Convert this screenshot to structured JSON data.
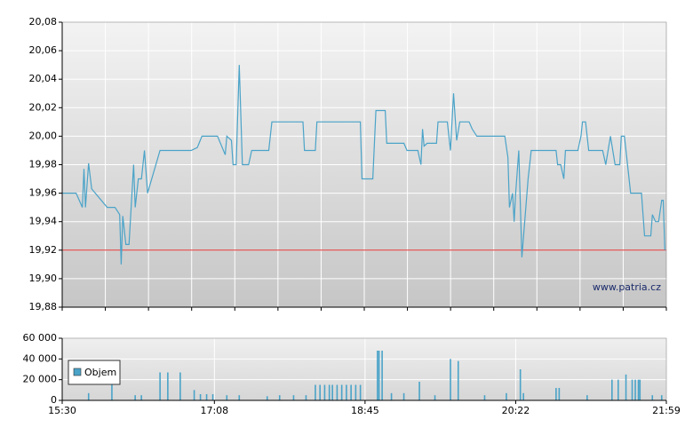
{
  "chart_data": [
    {
      "type": "line",
      "color": "#4aa3c8",
      "xlim": [
        "15:30",
        "21:59"
      ],
      "ylim": [
        19.88,
        20.08
      ],
      "yticks": [
        {
          "value": 19.88,
          "label": "19,88"
        },
        {
          "value": 19.9,
          "label": "19,90"
        },
        {
          "value": 19.92,
          "label": "19,92"
        },
        {
          "value": 19.94,
          "label": "19,94"
        },
        {
          "value": 19.96,
          "label": "19,96"
        },
        {
          "value": 19.98,
          "label": "19,98"
        },
        {
          "value": 20.0,
          "label": "20,00"
        },
        {
          "value": 20.02,
          "label": "20,02"
        },
        {
          "value": 20.04,
          "label": "20,04"
        },
        {
          "value": 20.06,
          "label": "20,06"
        },
        {
          "value": 20.08,
          "label": "20,08"
        }
      ],
      "grid": true,
      "reference_line": {
        "value": 19.92,
        "color": "#e03030"
      },
      "watermark": "www.patria.cz",
      "x": [
        "15:30",
        "15:39",
        "15:43",
        "15:44",
        "15:45",
        "15:47",
        "15:49",
        "15:59",
        "16:04",
        "16:07",
        "16:08",
        "16:09",
        "16:11",
        "16:13",
        "16:16",
        "16:17",
        "16:19",
        "16:21",
        "16:23",
        "16:25",
        "16:33",
        "16:53",
        "16:57",
        "17:00",
        "17:10",
        "17:15",
        "17:16",
        "17:19",
        "17:20",
        "17:22",
        "17:24",
        "17:26",
        "17:30",
        "17:32",
        "17:43",
        "17:45",
        "18:05",
        "18:06",
        "18:13",
        "18:14",
        "18:42",
        "18:43",
        "18:50",
        "18:52",
        "18:58",
        "18:59",
        "19:10",
        "19:12",
        "19:19",
        "19:21",
        "19:22",
        "19:23",
        "19:25",
        "19:31",
        "19:32",
        "19:38",
        "19:40",
        "19:42",
        "19:44",
        "19:46",
        "19:52",
        "19:54",
        "19:57",
        "20:15",
        "20:17",
        "20:18",
        "20:20",
        "20:21",
        "20:22",
        "20:24",
        "20:26",
        "20:30",
        "20:32",
        "20:48",
        "20:49",
        "20:51",
        "20:53",
        "20:54",
        "21:02",
        "21:04",
        "21:05",
        "21:07",
        "21:09",
        "21:18",
        "21:20",
        "21:23",
        "21:26",
        "21:29",
        "21:30",
        "21:32",
        "21:34",
        "21:36",
        "21:43",
        "21:45",
        "21:49",
        "21:50",
        "21:52",
        "21:54",
        "21:56",
        "21:57",
        "21:58"
      ],
      "values": [
        19.96,
        19.96,
        19.95,
        19.977,
        19.95,
        19.981,
        19.963,
        19.95,
        19.95,
        19.945,
        19.91,
        19.944,
        19.924,
        19.924,
        19.98,
        19.95,
        19.97,
        19.97,
        19.99,
        19.96,
        19.99,
        19.99,
        19.992,
        20.0,
        20.0,
        19.987,
        20.0,
        19.997,
        19.98,
        19.98,
        20.05,
        19.98,
        19.98,
        19.99,
        19.99,
        20.01,
        20.01,
        19.99,
        19.99,
        20.01,
        20.01,
        19.97,
        19.97,
        20.018,
        20.018,
        19.995,
        19.995,
        19.99,
        19.99,
        19.98,
        20.005,
        19.993,
        19.995,
        19.995,
        20.01,
        20.01,
        19.99,
        20.03,
        19.997,
        20.01,
        20.01,
        20.005,
        20.0,
        20.0,
        19.985,
        19.95,
        19.96,
        19.94,
        19.96,
        19.99,
        19.915,
        19.97,
        19.99,
        19.99,
        19.98,
        19.98,
        19.97,
        19.99,
        19.99,
        20.0,
        20.01,
        20.01,
        19.99,
        19.99,
        19.98,
        20.0,
        19.98,
        19.98,
        20.0,
        20.0,
        19.98,
        19.96,
        19.96,
        19.93,
        19.93,
        19.945,
        19.94,
        19.94,
        19.955,
        19.955,
        19.92
      ]
    },
    {
      "type": "bar",
      "xlim": [
        "15:30",
        "21:59"
      ],
      "xticks": [
        "15:30",
        "17:08",
        "18:45",
        "20:22",
        "21:59"
      ],
      "ylim": [
        0,
        60000
      ],
      "yticks": [
        0,
        {
          "value": 20000,
          "label": "20 000"
        },
        {
          "value": 40000,
          "label": "40 000"
        },
        {
          "value": 60000,
          "label": "60 000"
        }
      ],
      "grid": true,
      "legend": "lower left",
      "x": [
        "15:47",
        "16:02",
        "16:17",
        "16:21",
        "16:33",
        "16:38",
        "16:46",
        "16:55",
        "16:59",
        "17:03",
        "17:07",
        "17:16",
        "17:24",
        "17:42",
        "17:50",
        "17:59",
        "18:07",
        "18:13",
        "18:16",
        "18:19",
        "18:22",
        "18:24",
        "18:27",
        "18:30",
        "18:33",
        "18:36",
        "18:39",
        "18:42",
        "18:53",
        "18:54",
        "18:56",
        "19:02",
        "19:10",
        "19:20",
        "19:30",
        "19:40",
        "19:45",
        "20:02",
        "20:16",
        "20:25",
        "20:27",
        "20:48",
        "20:50",
        "21:08",
        "21:24",
        "21:28",
        "21:33",
        "21:37",
        "21:39",
        "21:41",
        "21:42",
        "21:50",
        "21:56"
      ],
      "series": [
        {
          "name": "Objem",
          "color": "#4aa3c8",
          "values": [
            7000,
            15000,
            5000,
            5000,
            27000,
            27000,
            27000,
            10000,
            6000,
            6000,
            6000,
            5000,
            5000,
            4000,
            5000,
            5000,
            5000,
            15000,
            15000,
            15000,
            15000,
            15000,
            15000,
            15000,
            15000,
            15000,
            15000,
            15000,
            48000,
            48000,
            48000,
            7000,
            7000,
            18000,
            5000,
            40000,
            38000,
            5000,
            7000,
            30000,
            7000,
            12000,
            12000,
            5000,
            20000,
            20000,
            25000,
            20000,
            20000,
            20000,
            20000,
            5000,
            5000
          ]
        }
      ]
    }
  ]
}
